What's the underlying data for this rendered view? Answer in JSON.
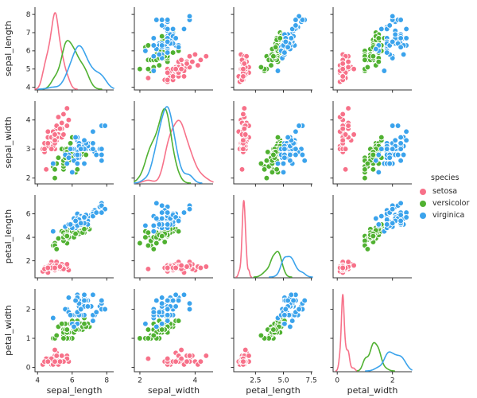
{
  "chart_data": {
    "type": "scatter",
    "subtype": "pairplot_scatter_matrix",
    "title": "",
    "diagonal": "kde",
    "variables": [
      "sepal_length",
      "sepal_width",
      "petal_length",
      "petal_width"
    ],
    "colors": {
      "setosa": "#f77189",
      "versicolor": "#50b131",
      "virginica": "#3ba3ec",
      "axis": "#333333",
      "text": "#262626",
      "marker_edge": "#ffffff",
      "background": "#ffffff"
    },
    "legend": {
      "title": "species",
      "entries": [
        {
          "label": "setosa",
          "color": "#f77189"
        },
        {
          "label": "versicolor",
          "color": "#50b131"
        },
        {
          "label": "virginica",
          "color": "#3ba3ec"
        }
      ],
      "position": "right"
    },
    "axis": {
      "grid": false,
      "ranges": {
        "sepal_length": [
          3.85,
          8.4
        ],
        "sepal_width": [
          1.8,
          4.65
        ],
        "petal_length": [
          0.55,
          7.6
        ],
        "petal_width": [
          -0.15,
          2.7
        ]
      },
      "x_ticks": {
        "sepal_length": {
          "values": [
            4,
            6,
            8
          ],
          "labels": [
            "4",
            "6",
            "8"
          ]
        },
        "sepal_width": {
          "values": [
            2,
            4
          ],
          "labels": [
            "2",
            "4"
          ]
        },
        "petal_length": {
          "values": [
            2.5,
            5.0,
            7.5
          ],
          "labels": [
            "2.5",
            "5.0",
            "7.5"
          ]
        },
        "petal_width": {
          "values": [
            0,
            2
          ],
          "labels": [
            "0",
            "2"
          ]
        }
      },
      "y_ticks": {
        "sepal_length": {
          "values": [
            4,
            5,
            6,
            7,
            8
          ],
          "labels": [
            "4",
            "5",
            "6",
            "7",
            "8"
          ]
        },
        "sepal_width": {
          "values": [
            2,
            3,
            4
          ],
          "labels": [
            "2",
            "3",
            "4"
          ]
        },
        "petal_length": {
          "values": [
            2,
            4,
            6
          ],
          "labels": [
            "2",
            "4",
            "6"
          ]
        },
        "petal_width": {
          "values": [
            0,
            1,
            2
          ],
          "labels": [
            "0",
            "1",
            "2"
          ]
        }
      }
    },
    "series": [
      {
        "name": "setosa",
        "color": "#f77189",
        "points": [
          [
            5.1,
            3.5,
            1.4,
            0.2
          ],
          [
            4.9,
            3.0,
            1.4,
            0.2
          ],
          [
            4.7,
            3.2,
            1.3,
            0.2
          ],
          [
            4.6,
            3.1,
            1.5,
            0.2
          ],
          [
            5.0,
            3.6,
            1.4,
            0.2
          ],
          [
            5.4,
            3.9,
            1.7,
            0.4
          ],
          [
            4.6,
            3.4,
            1.4,
            0.3
          ],
          [
            5.0,
            3.4,
            1.5,
            0.2
          ],
          [
            4.4,
            2.9,
            1.4,
            0.2
          ],
          [
            4.9,
            3.1,
            1.5,
            0.1
          ],
          [
            5.4,
            3.7,
            1.5,
            0.2
          ],
          [
            4.8,
            3.4,
            1.6,
            0.2
          ],
          [
            4.8,
            3.0,
            1.4,
            0.1
          ],
          [
            4.3,
            3.0,
            1.1,
            0.1
          ],
          [
            5.8,
            4.0,
            1.2,
            0.2
          ],
          [
            5.7,
            4.4,
            1.5,
            0.4
          ],
          [
            5.4,
            3.9,
            1.3,
            0.4
          ],
          [
            5.1,
            3.5,
            1.4,
            0.3
          ],
          [
            5.7,
            3.8,
            1.7,
            0.3
          ],
          [
            5.1,
            3.8,
            1.5,
            0.3
          ],
          [
            5.4,
            3.4,
            1.7,
            0.2
          ],
          [
            5.1,
            3.7,
            1.5,
            0.4
          ],
          [
            4.6,
            3.6,
            1.0,
            0.2
          ],
          [
            5.1,
            3.3,
            1.7,
            0.5
          ],
          [
            4.8,
            3.4,
            1.9,
            0.2
          ],
          [
            5.0,
            3.0,
            1.6,
            0.2
          ],
          [
            5.0,
            3.4,
            1.6,
            0.4
          ],
          [
            5.2,
            3.5,
            1.5,
            0.2
          ],
          [
            5.2,
            3.4,
            1.4,
            0.2
          ],
          [
            4.7,
            3.2,
            1.6,
            0.2
          ],
          [
            4.8,
            3.1,
            1.6,
            0.2
          ],
          [
            5.4,
            3.4,
            1.5,
            0.4
          ],
          [
            5.2,
            4.1,
            1.5,
            0.1
          ],
          [
            5.5,
            4.2,
            1.4,
            0.2
          ],
          [
            4.9,
            3.1,
            1.5,
            0.2
          ],
          [
            5.0,
            3.2,
            1.2,
            0.2
          ],
          [
            5.5,
            3.5,
            1.3,
            0.2
          ],
          [
            4.9,
            3.6,
            1.4,
            0.1
          ],
          [
            4.4,
            3.0,
            1.3,
            0.2
          ],
          [
            5.1,
            3.4,
            1.5,
            0.2
          ],
          [
            5.0,
            3.5,
            1.3,
            0.3
          ],
          [
            4.5,
            2.3,
            1.3,
            0.3
          ],
          [
            4.4,
            3.2,
            1.3,
            0.2
          ],
          [
            5.0,
            3.5,
            1.6,
            0.6
          ],
          [
            5.1,
            3.8,
            1.9,
            0.4
          ],
          [
            4.8,
            3.0,
            1.4,
            0.3
          ],
          [
            5.1,
            3.8,
            1.6,
            0.2
          ],
          [
            4.6,
            3.2,
            1.4,
            0.2
          ],
          [
            5.3,
            3.7,
            1.5,
            0.2
          ],
          [
            5.0,
            3.3,
            1.4,
            0.2
          ]
        ]
      },
      {
        "name": "versicolor",
        "color": "#50b131",
        "points": [
          [
            7.0,
            3.2,
            4.7,
            1.4
          ],
          [
            6.4,
            3.2,
            4.5,
            1.5
          ],
          [
            6.9,
            3.1,
            4.9,
            1.5
          ],
          [
            5.5,
            2.3,
            4.0,
            1.3
          ],
          [
            6.5,
            2.8,
            4.6,
            1.5
          ],
          [
            5.7,
            2.8,
            4.5,
            1.3
          ],
          [
            6.3,
            3.3,
            4.7,
            1.6
          ],
          [
            4.9,
            2.4,
            3.3,
            1.0
          ],
          [
            6.6,
            2.9,
            4.6,
            1.3
          ],
          [
            5.2,
            2.7,
            3.9,
            1.4
          ],
          [
            5.0,
            2.0,
            3.5,
            1.0
          ],
          [
            5.9,
            3.0,
            4.2,
            1.5
          ],
          [
            6.0,
            2.2,
            4.0,
            1.0
          ],
          [
            6.1,
            2.9,
            4.7,
            1.4
          ],
          [
            5.6,
            2.9,
            3.6,
            1.3
          ],
          [
            6.7,
            3.1,
            4.4,
            1.4
          ],
          [
            5.6,
            3.0,
            4.5,
            1.5
          ],
          [
            5.8,
            2.7,
            4.1,
            1.0
          ],
          [
            6.2,
            2.2,
            4.5,
            1.5
          ],
          [
            5.6,
            2.5,
            3.9,
            1.1
          ],
          [
            5.9,
            3.2,
            4.8,
            1.8
          ],
          [
            6.1,
            2.8,
            4.0,
            1.3
          ],
          [
            6.3,
            2.5,
            4.9,
            1.5
          ],
          [
            6.1,
            2.8,
            4.7,
            1.2
          ],
          [
            6.4,
            2.9,
            4.3,
            1.3
          ],
          [
            6.6,
            3.0,
            4.4,
            1.4
          ],
          [
            6.8,
            2.8,
            4.8,
            1.4
          ],
          [
            6.7,
            3.0,
            5.0,
            1.7
          ],
          [
            6.0,
            2.9,
            4.5,
            1.5
          ],
          [
            5.7,
            2.6,
            3.5,
            1.0
          ],
          [
            5.5,
            2.4,
            3.8,
            1.1
          ],
          [
            5.5,
            2.4,
            3.7,
            1.0
          ],
          [
            5.8,
            2.7,
            3.9,
            1.2
          ],
          [
            6.0,
            2.7,
            5.1,
            1.6
          ],
          [
            5.4,
            3.0,
            4.5,
            1.5
          ],
          [
            6.0,
            3.4,
            4.5,
            1.6
          ],
          [
            6.7,
            3.1,
            4.7,
            1.5
          ],
          [
            6.3,
            2.3,
            4.4,
            1.3
          ],
          [
            5.6,
            3.0,
            4.1,
            1.3
          ],
          [
            5.5,
            2.5,
            4.0,
            1.3
          ],
          [
            5.5,
            2.6,
            4.4,
            1.2
          ],
          [
            6.1,
            3.0,
            4.6,
            1.4
          ],
          [
            5.8,
            2.6,
            4.0,
            1.2
          ],
          [
            5.0,
            2.3,
            3.3,
            1.0
          ],
          [
            5.6,
            2.7,
            4.2,
            1.3
          ],
          [
            5.7,
            3.0,
            4.2,
            1.2
          ],
          [
            5.7,
            2.9,
            4.2,
            1.3
          ],
          [
            6.2,
            2.9,
            4.3,
            1.3
          ],
          [
            5.1,
            2.5,
            3.0,
            1.1
          ],
          [
            5.7,
            2.8,
            4.1,
            1.3
          ]
        ]
      },
      {
        "name": "virginica",
        "color": "#3ba3ec",
        "points": [
          [
            6.3,
            3.3,
            6.0,
            2.5
          ],
          [
            5.8,
            2.7,
            5.1,
            1.9
          ],
          [
            7.1,
            3.0,
            5.9,
            2.1
          ],
          [
            6.3,
            2.9,
            5.6,
            1.8
          ],
          [
            6.5,
            3.0,
            5.8,
            2.2
          ],
          [
            7.6,
            3.0,
            6.6,
            2.1
          ],
          [
            4.9,
            2.5,
            4.5,
            1.7
          ],
          [
            7.3,
            2.9,
            6.3,
            1.8
          ],
          [
            6.7,
            2.5,
            5.8,
            1.8
          ],
          [
            7.2,
            3.6,
            6.1,
            2.5
          ],
          [
            6.5,
            3.2,
            5.1,
            2.0
          ],
          [
            6.4,
            2.7,
            5.3,
            1.9
          ],
          [
            6.8,
            3.0,
            5.5,
            2.1
          ],
          [
            5.7,
            2.5,
            5.0,
            2.0
          ],
          [
            5.8,
            2.8,
            5.1,
            2.4
          ],
          [
            6.4,
            3.2,
            5.3,
            2.3
          ],
          [
            6.5,
            3.0,
            5.5,
            1.8
          ],
          [
            7.7,
            3.8,
            6.7,
            2.2
          ],
          [
            7.7,
            2.6,
            6.9,
            2.3
          ],
          [
            6.0,
            2.2,
            5.0,
            1.5
          ],
          [
            6.9,
            3.2,
            5.7,
            2.3
          ],
          [
            5.6,
            2.8,
            4.9,
            2.0
          ],
          [
            7.7,
            2.8,
            6.7,
            2.0
          ],
          [
            6.3,
            2.7,
            4.9,
            1.8
          ],
          [
            6.7,
            3.3,
            5.7,
            2.1
          ],
          [
            7.2,
            3.2,
            6.0,
            1.8
          ],
          [
            6.2,
            2.8,
            4.8,
            1.8
          ],
          [
            6.1,
            3.0,
            4.9,
            1.8
          ],
          [
            6.4,
            2.8,
            5.6,
            2.1
          ],
          [
            7.2,
            3.0,
            5.8,
            1.6
          ],
          [
            7.4,
            2.8,
            6.1,
            1.9
          ],
          [
            7.9,
            3.8,
            6.4,
            2.0
          ],
          [
            6.4,
            2.8,
            5.6,
            2.2
          ],
          [
            6.3,
            2.8,
            5.1,
            1.5
          ],
          [
            6.1,
            2.6,
            5.6,
            1.4
          ],
          [
            7.7,
            3.0,
            6.1,
            2.3
          ],
          [
            6.3,
            3.4,
            5.6,
            2.4
          ],
          [
            6.4,
            3.1,
            5.5,
            1.8
          ],
          [
            6.0,
            3.0,
            4.8,
            1.8
          ],
          [
            6.9,
            3.1,
            5.4,
            2.1
          ],
          [
            6.7,
            3.1,
            5.6,
            2.4
          ],
          [
            6.9,
            3.1,
            5.1,
            2.3
          ],
          [
            5.8,
            2.7,
            5.1,
            1.9
          ],
          [
            6.8,
            3.2,
            5.9,
            2.3
          ],
          [
            6.7,
            3.3,
            5.7,
            2.5
          ],
          [
            6.7,
            3.0,
            5.2,
            2.3
          ],
          [
            6.3,
            2.5,
            5.0,
            1.9
          ],
          [
            6.5,
            3.0,
            5.2,
            2.0
          ],
          [
            6.2,
            3.4,
            5.4,
            2.3
          ],
          [
            5.9,
            3.0,
            5.1,
            1.8
          ]
        ]
      }
    ]
  }
}
